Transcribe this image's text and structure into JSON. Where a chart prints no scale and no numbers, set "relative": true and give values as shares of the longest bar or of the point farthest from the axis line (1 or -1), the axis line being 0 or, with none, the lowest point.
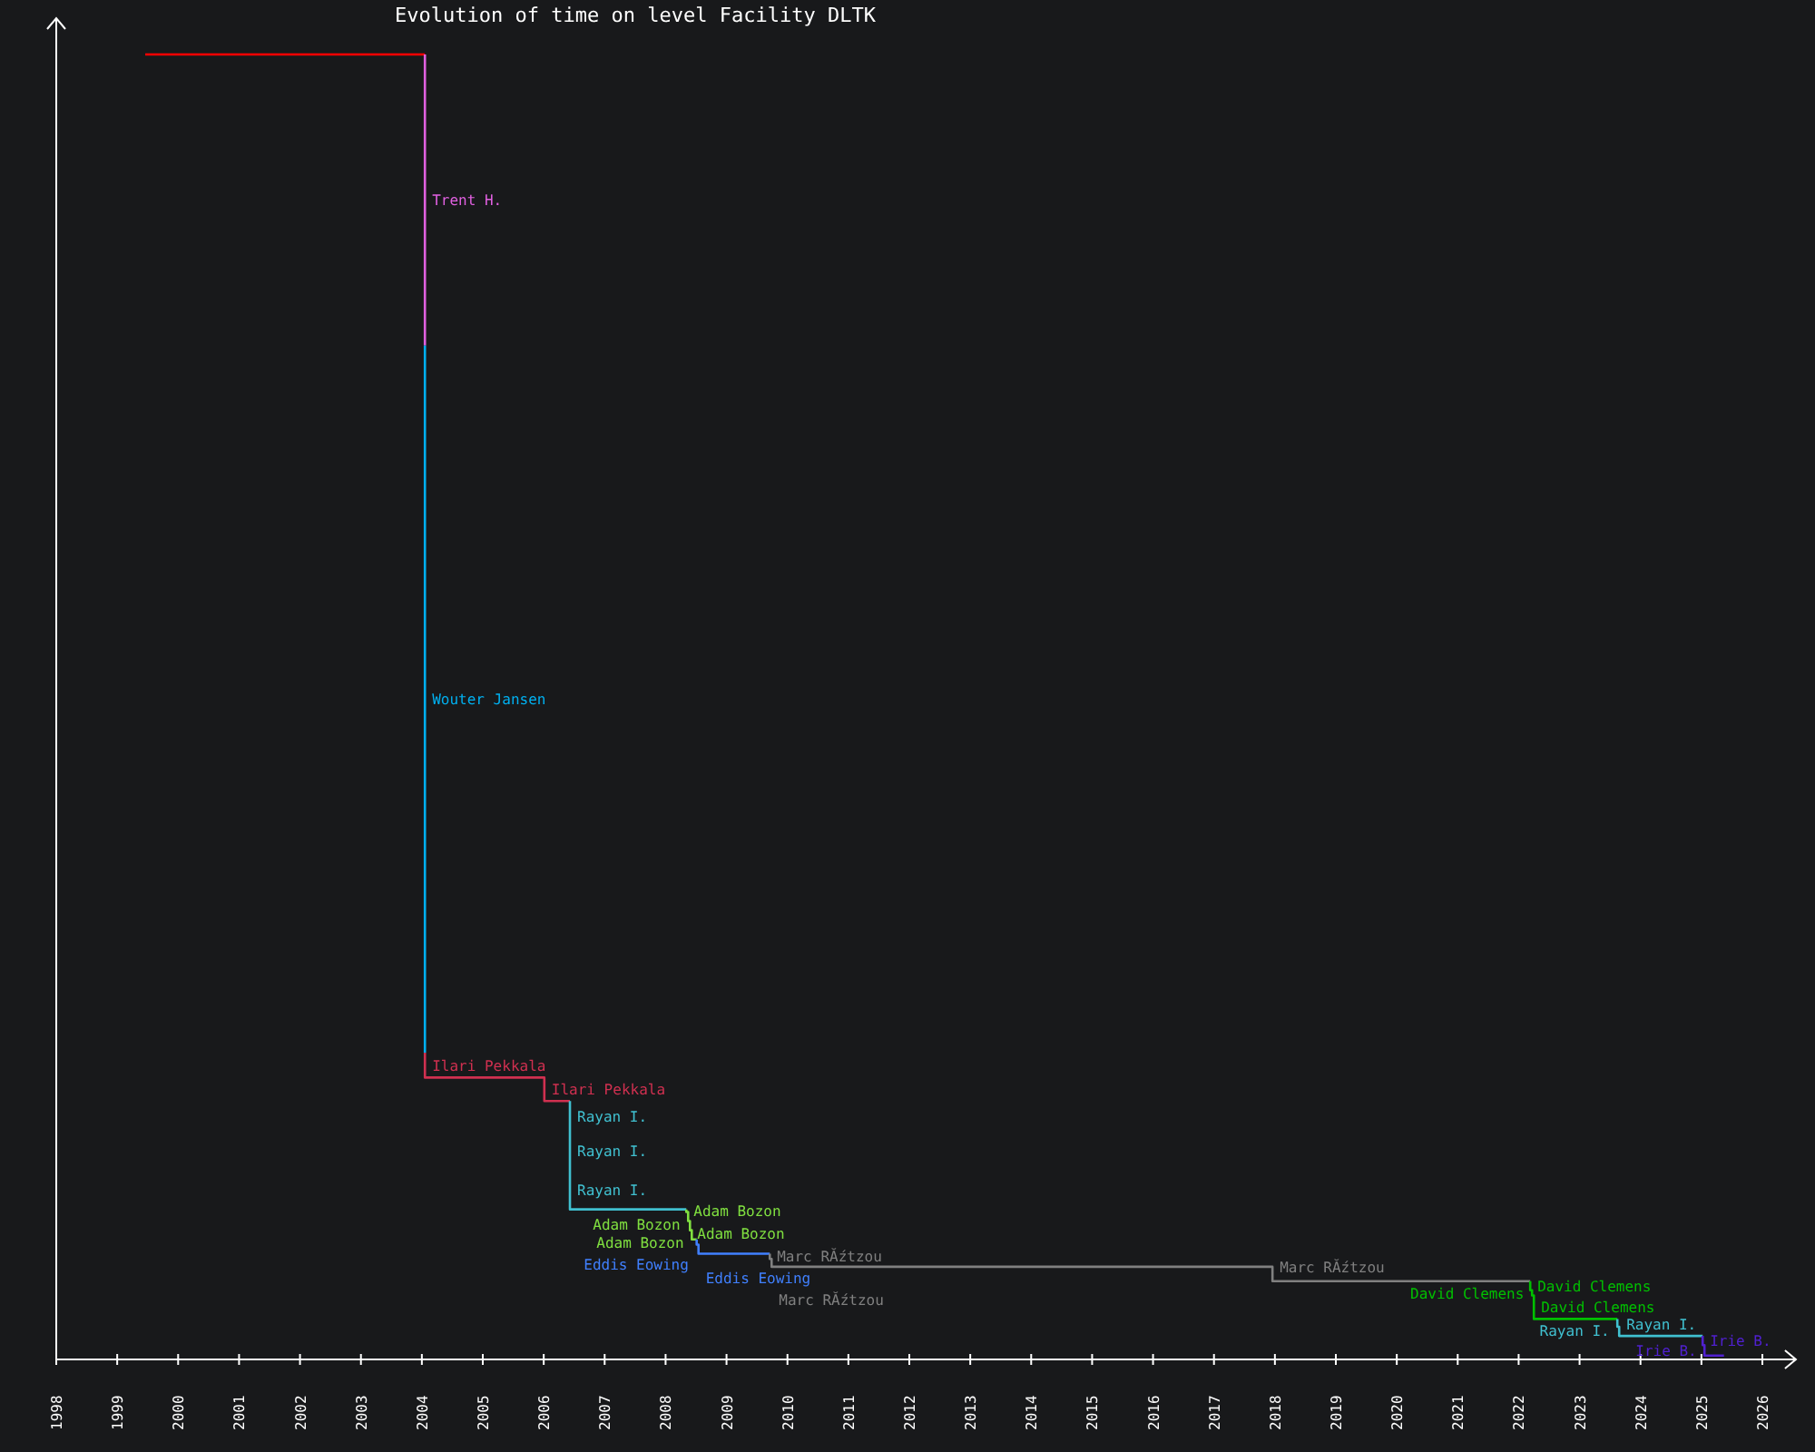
{
  "chart_data": {
    "type": "line",
    "title": "Evolution of time on level Facility DLTK",
    "relative": true,
    "xlim": [
      1998,
      2026.55
    ],
    "xticks": [
      1998,
      1999,
      2000,
      2001,
      2002,
      2003,
      2004,
      2005,
      2006,
      2007,
      2008,
      2009,
      2010,
      2011,
      2012,
      2013,
      2014,
      2015,
      2016,
      2017,
      2018,
      2019,
      2020,
      2021,
      2022,
      2023,
      2024,
      2025,
      2026
    ],
    "grid": false,
    "series": [
      {
        "color": "#ff0000",
        "x": [
          1999.46,
          2004.05
        ],
        "values": [
          1,
          1
        ]
      },
      {
        "name": "Trent H.",
        "color": "#e060e0",
        "x": [
          2004.05,
          2004.05
        ],
        "values": [
          1,
          0.777
        ]
      },
      {
        "name": "Wouter Jansen",
        "color": "#00b0f0",
        "x": [
          2004.05,
          2004.05
        ],
        "values": [
          0.777,
          0.235
        ]
      },
      {
        "name": "Ilari Pekkala",
        "color": "#d03050",
        "x": [
          2004.05,
          2004.05,
          2006.01,
          2006.01,
          2006.43
        ],
        "values": [
          0.235,
          0.216,
          0.216,
          0.198,
          0.198
        ]
      },
      {
        "name": "Rayan I.",
        "color": "#40c0d0",
        "x": [
          2006.43,
          2006.43,
          2006.43,
          2006.43,
          2008.34
        ],
        "values": [
          0.198,
          0.175,
          0.145,
          0.115,
          0.115
        ]
      },
      {
        "name": "Adam Bozon",
        "color": "#80e040",
        "x": [
          2008.34,
          2008.34,
          2008.37,
          2008.37,
          2008.4,
          2008.4,
          2008.43,
          2008.43,
          2008.51
        ],
        "values": [
          0.115,
          0.113,
          0.113,
          0.106,
          0.106,
          0.099,
          0.099,
          0.092,
          0.092
        ]
      },
      {
        "name": "Eddis Eowing",
        "color": "#4080ff",
        "x": [
          2008.51,
          2008.51,
          2008.54,
          2008.54,
          2009.71
        ],
        "values": [
          0.092,
          0.088,
          0.088,
          0.081,
          0.081
        ]
      },
      {
        "name": "Marc RĂźtzou",
        "color": "#808080",
        "x": [
          2009.71,
          2009.71,
          2009.74,
          2009.74,
          2017.96,
          2017.96,
          2022.19
        ],
        "values": [
          0.081,
          0.077,
          0.077,
          0.071,
          0.071,
          0.06,
          0.06
        ]
      },
      {
        "name": "David Clemens",
        "color": "#00c000",
        "x": [
          2022.19,
          2022.19,
          2022.22,
          2022.22,
          2022.25,
          2022.25,
          2023.62
        ],
        "values": [
          0.06,
          0.053,
          0.053,
          0.049,
          0.049,
          0.031,
          0.031
        ]
      },
      {
        "name": "Rayan I.",
        "color": "#40c0d0",
        "x": [
          2023.62,
          2023.62,
          2023.65,
          2023.65,
          2025.02
        ],
        "values": [
          0.031,
          0.025,
          0.025,
          0.018,
          0.018
        ]
      },
      {
        "name": "Irie B.",
        "color": "#5020d0",
        "x": [
          2025.02,
          2025.02,
          2025.05,
          2025.05,
          2025.37
        ],
        "values": [
          0.018,
          0.011,
          0.011,
          0.003,
          0.003
        ]
      }
    ]
  }
}
